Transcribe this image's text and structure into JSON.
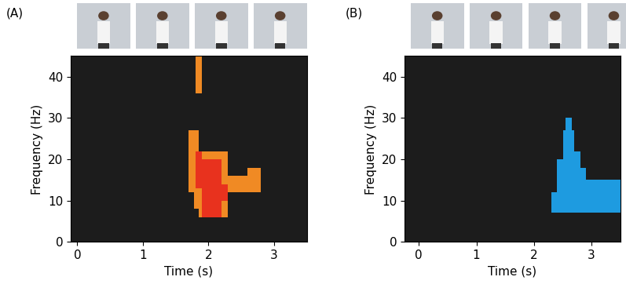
{
  "chart_data": [
    {
      "type": "heatmap",
      "panel_label": "(A)",
      "x_label": "Time (s)",
      "y_label": "Frequency (Hz)",
      "xlim": [
        -0.1,
        3.5
      ],
      "ylim": [
        0,
        45
      ],
      "xticks": [
        0,
        1,
        2,
        3
      ],
      "yticks": [
        0,
        10,
        20,
        30,
        40
      ],
      "blocks": [
        {
          "t": [
            1.8,
            1.9
          ],
          "f": [
            36,
            45
          ],
          "color": "#f08a24"
        },
        {
          "t": [
            1.7,
            1.78
          ],
          "f": [
            12,
            27
          ],
          "color": "#f08a24"
        },
        {
          "t": [
            1.78,
            1.85
          ],
          "f": [
            8,
            27
          ],
          "color": "#f08a24"
        },
        {
          "t": [
            1.85,
            2.3
          ],
          "f": [
            6,
            22
          ],
          "color": "#f08a24"
        },
        {
          "t": [
            2.2,
            2.8
          ],
          "f": [
            12,
            16
          ],
          "color": "#f08a24"
        },
        {
          "t": [
            2.6,
            2.8
          ],
          "f": [
            16,
            18
          ],
          "color": "#f08a24"
        },
        {
          "t": [
            1.8,
            1.9
          ],
          "f": [
            13,
            22
          ],
          "color": "#e8321e"
        },
        {
          "t": [
            1.9,
            2.2
          ],
          "f": [
            6,
            20
          ],
          "color": "#e8321e"
        },
        {
          "t": [
            2.2,
            2.3
          ],
          "f": [
            10,
            14
          ],
          "color": "#e8321e"
        }
      ]
    },
    {
      "type": "heatmap",
      "panel_label": "(B)",
      "x_label": "Time (s)",
      "y_label": "Frequency (Hz)",
      "xlim": [
        -0.25,
        3.5
      ],
      "ylim": [
        0,
        45
      ],
      "xticks": [
        0,
        1,
        2,
        3
      ],
      "yticks": [
        0,
        10,
        20,
        30,
        40
      ],
      "blocks": [
        {
          "t": [
            2.3,
            2.4
          ],
          "f": [
            7,
            12
          ],
          "color": "#1e9be0"
        },
        {
          "t": [
            2.4,
            2.5
          ],
          "f": [
            7,
            20
          ],
          "color": "#1e9be0"
        },
        {
          "t": [
            2.5,
            2.7
          ],
          "f": [
            7,
            27
          ],
          "color": "#1e9be0"
        },
        {
          "t": [
            2.55,
            2.65
          ],
          "f": [
            27,
            30
          ],
          "color": "#1e9be0"
        },
        {
          "t": [
            2.7,
            2.8
          ],
          "f": [
            7,
            22
          ],
          "color": "#1e9be0"
        },
        {
          "t": [
            2.8,
            2.9
          ],
          "f": [
            7,
            18
          ],
          "color": "#1e9be0"
        },
        {
          "t": [
            2.9,
            3.5
          ],
          "f": [
            7,
            15
          ],
          "color": "#1e9be0"
        }
      ]
    }
  ]
}
